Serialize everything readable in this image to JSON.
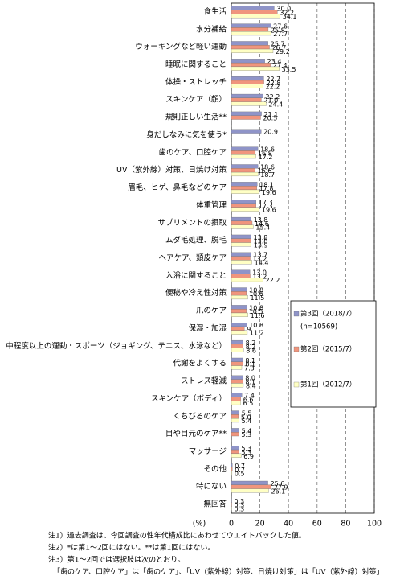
{
  "chart_data": {
    "type": "bar",
    "orientation": "horizontal",
    "categories": [
      "食生活",
      "水分補給",
      "ウォーキングなど軽い運動",
      "睡眠に関すること",
      "体操・ストレッチ",
      "スキンケア（顔）",
      "規則正しい生活**",
      "身だしなみに気を使う*",
      "歯のケア、口腔ケア",
      "UV（紫外線）対策、日焼け対策",
      "眉毛、ヒゲ、鼻毛などのケア",
      "体重管理",
      "サプリメントの摂取",
      "ムダ毛処理、脱毛",
      "ヘアケア、頭皮ケア",
      "入浴に関すること",
      "便秘や冷え性対策",
      "爪のケア",
      "保湿・加湿",
      "中程度以上の運動・スポーツ（ジョギング、テニス、水泳など）",
      "代謝をよくする",
      "ストレス軽減",
      "スキンケア（ボディ）",
      "くちびるのケア",
      "目や目元のケア**",
      "マッサージ",
      "その他",
      "特にない",
      "無回答"
    ],
    "series": [
      {
        "name": "第3回（2018/7）",
        "color": "#8f94c8",
        "values": [
          30.0,
          27.6,
          25.7,
          23.4,
          22.7,
          22.2,
          21.1,
          20.9,
          18.6,
          18.6,
          18.1,
          17.3,
          13.8,
          13.8,
          13.7,
          13.0,
          10.8,
          10.8,
          10.8,
          8.2,
          8.1,
          8.0,
          7.4,
          5.5,
          5.4,
          5.3,
          0.7,
          25.6,
          0.3
        ],
        "value_labels": [
          "30.0",
          "27.6",
          "25.7",
          "23.4",
          "22.7",
          "22.2",
          "21.1",
          "20.9",
          "18.6",
          "18.6",
          "18.1",
          "17.3",
          "13.8",
          "13.8",
          "13.7",
          "13.0",
          "10.8",
          "10.8",
          "10.8",
          "8.2",
          "8.1",
          "8.0",
          "7.4",
          "5.5",
          "5.4",
          "5.3",
          "0.7",
          "25.6",
          "0.3"
        ]
      },
      {
        "name": "第2回（2015/7）",
        "color": "#f0957d",
        "values": [
          32.2,
          25.8,
          26.7,
          27.4,
          22.8,
          21.0,
          20.5,
          null,
          16.8,
          16.6,
          17.8,
          17.3,
          14.6,
          13.8,
          13.2,
          13.2,
          10.6,
          10.5,
          9.1,
          8.2,
          8.1,
          8.1,
          6.6,
          5.0,
          5.3,
          5.3,
          0.7,
          27.9,
          0.3
        ],
        "value_labels": [
          "32.2",
          "25.8",
          "26.7",
          "27.4",
          "22.8",
          "21.0",
          "20.5",
          null,
          "16.8",
          "16.6",
          "17.8",
          "17.3",
          "14.6",
          "13.8",
          "13.2",
          "13.2",
          "10.6",
          "10.5",
          "9.1",
          "8.2",
          "8.1",
          "8.1",
          "6.6",
          "5.0",
          "5.3",
          "5.3",
          "0.7",
          "27.9",
          "0.3"
        ]
      },
      {
        "name": "第1回（2012/7）",
        "color": "#ffffc4",
        "values": [
          34.1,
          27.7,
          29.2,
          33.5,
          22.2,
          24.4,
          null,
          null,
          17.2,
          18.7,
          19.6,
          19.6,
          15.4,
          13.9,
          14.4,
          22.2,
          11.5,
          11.6,
          11.2,
          8.6,
          7.3,
          8.4,
          6.5,
          5.4,
          null,
          6.9,
          0.5,
          26.1,
          0.3
        ],
        "value_labels": [
          "34.1",
          "27.7",
          "29.2",
          "33.5",
          "22.2",
          "24.4",
          null,
          null,
          "17.2",
          "18.7",
          "19.6",
          "19.6",
          "15.4",
          "13.9",
          "14.4",
          "22.2",
          "11.5",
          "11.6",
          "11.2",
          "8.6",
          "7.3",
          "8.4",
          "6.5",
          "5.4",
          null,
          "6.9",
          "0.5",
          "26.1",
          "0.3"
        ]
      }
    ],
    "legend_note": "(n=10569)",
    "xlim": [
      0,
      100
    ],
    "xticks": [
      0,
      20,
      40,
      60,
      80,
      100
    ],
    "xlabel": "(%)",
    "grid": true,
    "notes": [
      "注1）過去調査は、今回調査の性年代構成比にあわせてウエイトバックした値。",
      "注2）*は第1～2回にはない。**は第1回にはない。",
      "注3）第1～2回では選択肢は次のとおり。",
      "「歯のケア、口腔ケア」は「歯のケア」、「UV（紫外線）対策、日焼け対策」は「UV（紫外線）対策」"
    ]
  }
}
